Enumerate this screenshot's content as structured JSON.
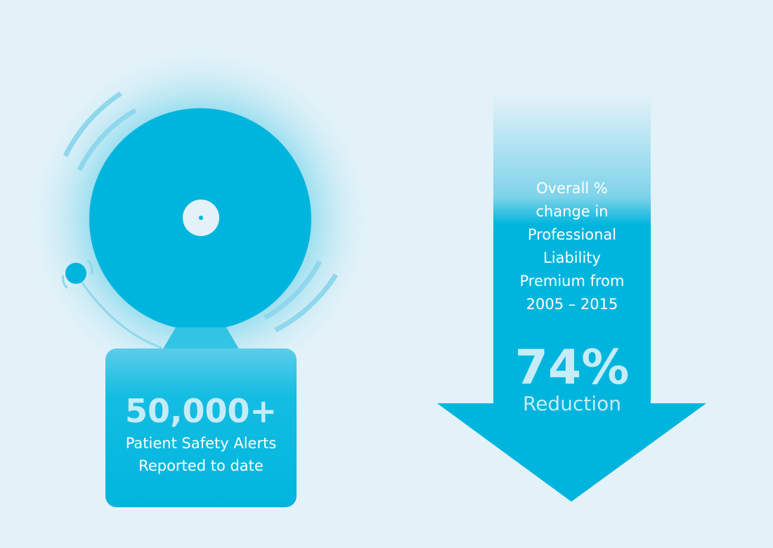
{
  "alerts": {
    "value": "50,000+",
    "line1": "Patient Safety Alerts",
    "line2": "Reported to date"
  },
  "premium": {
    "line1": "Overall %",
    "line2": "change in",
    "line3": "Professional",
    "line4": "Liability",
    "line5": "Premium from",
    "line6": "2005 – 2015",
    "percent": "74%",
    "label": "Reduction"
  },
  "colors": {
    "background": "#e3f2f8",
    "primary": "#00b5dd",
    "light_text": "#c6ecf7",
    "ring": "#8fd7ec"
  },
  "icons": {
    "bell": "alarm-bell-icon",
    "arrow": "down-arrow-icon"
  }
}
